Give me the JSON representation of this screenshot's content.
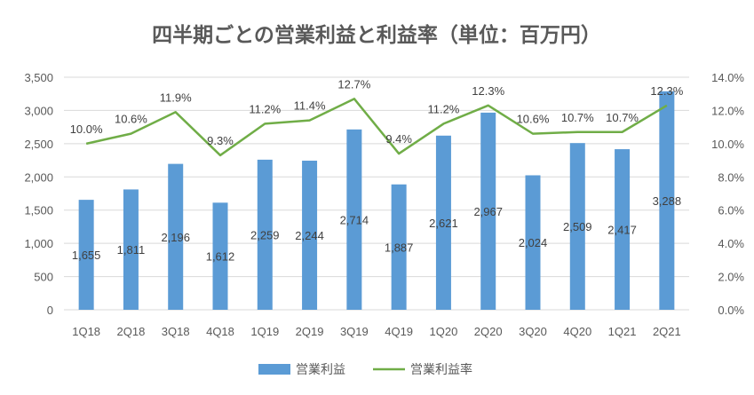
{
  "chart_data": {
    "type": "bar+line",
    "title": "四半期ごとの営業利益と利益率（単位：百万円）",
    "categories": [
      "1Q18",
      "2Q18",
      "3Q18",
      "4Q18",
      "1Q19",
      "2Q19",
      "3Q19",
      "4Q19",
      "1Q20",
      "2Q20",
      "3Q20",
      "4Q20",
      "1Q21",
      "2Q21"
    ],
    "series": [
      {
        "name": "営業利益",
        "type": "bar",
        "axis": "left",
        "color": "#5B9BD5",
        "values": [
          1655,
          1811,
          2196,
          1612,
          2259,
          2244,
          2714,
          1887,
          2621,
          2967,
          2024,
          2509,
          2417,
          3288
        ],
        "labels": [
          "1,655",
          "1,811",
          "2,196",
          "1,612",
          "2,259",
          "2,244",
          "2,714",
          "1,887",
          "2,621",
          "2,967",
          "2,024",
          "2,509",
          "2,417",
          "3,288"
        ]
      },
      {
        "name": "営業利益率",
        "type": "line",
        "axis": "right",
        "color": "#70AD47",
        "values": [
          10.0,
          10.6,
          11.9,
          9.3,
          11.2,
          11.4,
          12.7,
          9.4,
          11.2,
          12.3,
          10.6,
          10.7,
          10.7,
          12.3
        ],
        "labels": [
          "10.0%",
          "10.6%",
          "11.9%",
          "9.3%",
          "11.2%",
          "11.4%",
          "12.7%",
          "9.4%",
          "11.2%",
          "12.3%",
          "10.6%",
          "10.7%",
          "10.7%",
          "12.3%"
        ]
      }
    ],
    "y_left": {
      "range": [
        0,
        3500
      ],
      "ticks": [
        "0",
        "500",
        "1,000",
        "1,500",
        "2,000",
        "2,500",
        "3,000",
        "3,500"
      ]
    },
    "y_right": {
      "range": [
        0,
        14
      ],
      "ticks": [
        "0.0%",
        "2.0%",
        "4.0%",
        "6.0%",
        "8.0%",
        "10.0%",
        "12.0%",
        "14.0%"
      ]
    },
    "grid": true,
    "legend": "bottom"
  }
}
